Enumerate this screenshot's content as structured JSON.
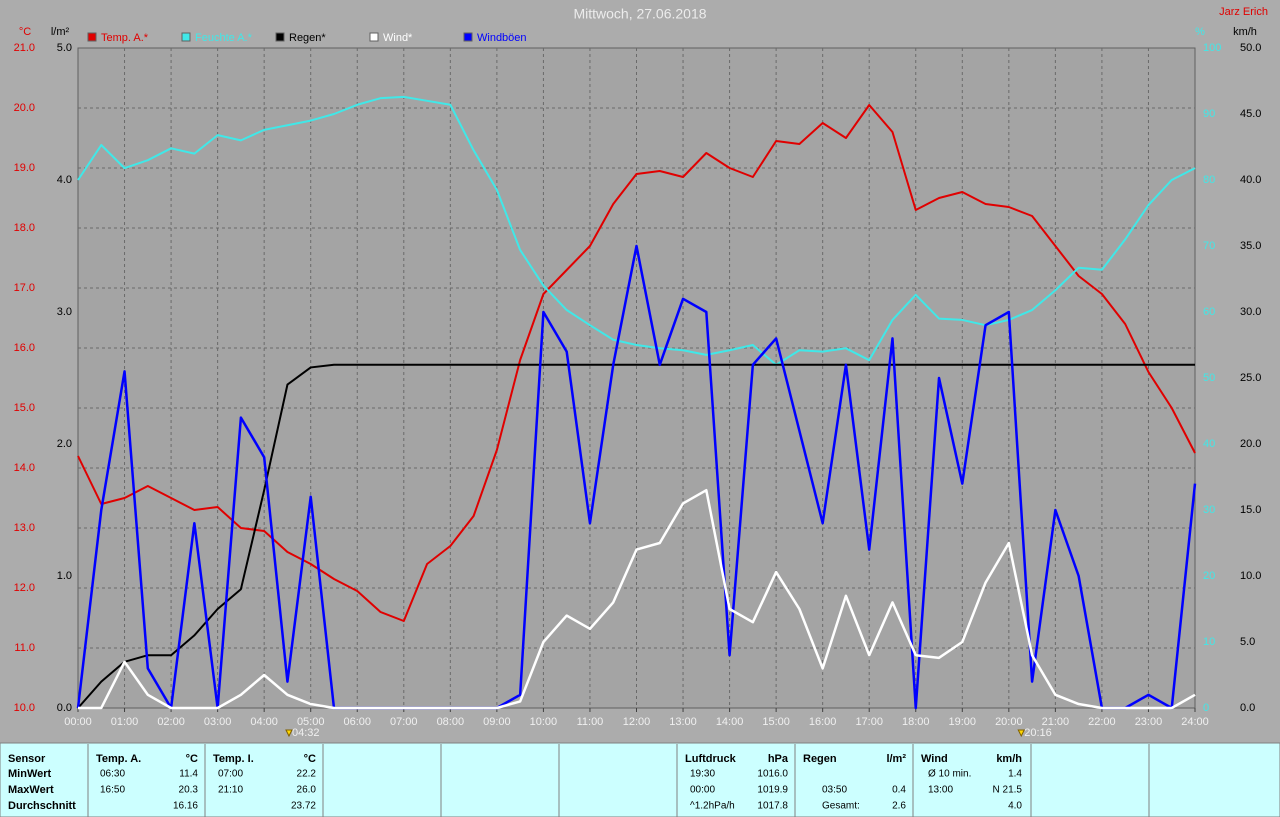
{
  "chart_data": {
    "type": "line",
    "title": "Mittwoch, 27.06.2018",
    "author": "Jarz Erich",
    "x": [
      0,
      0.5,
      1,
      1.5,
      2,
      2.5,
      3,
      3.5,
      4,
      4.5,
      5,
      5.5,
      6,
      6.5,
      7,
      7.5,
      8,
      8.5,
      9,
      9.5,
      10,
      10.5,
      11,
      11.5,
      12,
      12.5,
      13,
      13.5,
      14,
      14.5,
      15,
      15.5,
      16,
      16.5,
      17,
      17.5,
      18,
      18.5,
      19,
      19.5,
      20,
      20.5,
      21,
      21.5,
      22,
      22.5,
      23,
      23.5,
      24
    ],
    "xlim": [
      0,
      24
    ],
    "xticks": [
      {
        "value": 0,
        "label": "00:00"
      },
      {
        "value": 1,
        "label": "01:00"
      },
      {
        "value": 2,
        "label": "02:00"
      },
      {
        "value": 3,
        "label": "03:00"
      },
      {
        "value": 4,
        "label": "04:00"
      },
      {
        "value": 5,
        "label": "05:00"
      },
      {
        "value": 6,
        "label": "06:00"
      },
      {
        "value": 7,
        "label": "07:00"
      },
      {
        "value": 8,
        "label": "08:00"
      },
      {
        "value": 9,
        "label": "09:00"
      },
      {
        "value": 10,
        "label": "10:00"
      },
      {
        "value": 11,
        "label": "11:00"
      },
      {
        "value": 12,
        "label": "12:00"
      },
      {
        "value": 13,
        "label": "13:00"
      },
      {
        "value": 14,
        "label": "14:00"
      },
      {
        "value": 15,
        "label": "15:00"
      },
      {
        "value": 16,
        "label": "16:00"
      },
      {
        "value": 17,
        "label": "17:00"
      },
      {
        "value": 18,
        "label": "18:00"
      },
      {
        "value": 19,
        "label": "19:00"
      },
      {
        "value": 20,
        "label": "20:00"
      },
      {
        "value": 21,
        "label": "21:00"
      },
      {
        "value": 22,
        "label": "22:00"
      },
      {
        "value": 23,
        "label": "23:00"
      },
      {
        "value": 24,
        "label": "24:00"
      }
    ],
    "grid": true,
    "markers": [
      {
        "value": 4.533,
        "label": "04:32"
      },
      {
        "value": 20.267,
        "label": "20:16"
      }
    ],
    "axes": {
      "temp": {
        "unit": "°C",
        "color": "#e00000",
        "side": "left",
        "lim": [
          10,
          21
        ],
        "ticks": [
          {
            "value": 10,
            "label": "10.0"
          },
          {
            "value": 11,
            "label": "11.0"
          },
          {
            "value": 12,
            "label": "12.0"
          },
          {
            "value": 13,
            "label": "13.0"
          },
          {
            "value": 14,
            "label": "14.0"
          },
          {
            "value": 15,
            "label": "15.0"
          },
          {
            "value": 16,
            "label": "16.0"
          },
          {
            "value": 17,
            "label": "17.0"
          },
          {
            "value": 18,
            "label": "18.0"
          },
          {
            "value": 19,
            "label": "19.0"
          },
          {
            "value": 20,
            "label": "20.0"
          },
          {
            "value": 21,
            "label": "21.0"
          }
        ]
      },
      "rain": {
        "unit": "l/m²",
        "color": "#000000",
        "side": "left",
        "lim": [
          0,
          5
        ],
        "ticks": [
          {
            "value": 0,
            "label": "0.0"
          },
          {
            "value": 1,
            "label": "1.0"
          },
          {
            "value": 2,
            "label": "2.0"
          },
          {
            "value": 3,
            "label": "3.0"
          },
          {
            "value": 4,
            "label": "4.0"
          },
          {
            "value": 5,
            "label": "5.0"
          }
        ]
      },
      "humidity": {
        "unit": "%",
        "color": "#40e8e8",
        "side": "right",
        "lim": [
          0,
          100
        ],
        "ticks": [
          0,
          10,
          20,
          30,
          40,
          50,
          60,
          70,
          80,
          90,
          100
        ]
      },
      "wind": {
        "unit": "km/h",
        "color": "#000000",
        "side": "right",
        "lim": [
          0,
          50
        ],
        "ticks": [
          {
            "value": 0,
            "label": "0.0"
          },
          {
            "value": 5,
            "label": "5.0"
          },
          {
            "value": 10,
            "label": "10.0"
          },
          {
            "value": 15,
            "label": "15.0"
          },
          {
            "value": 20,
            "label": "20.0"
          },
          {
            "value": 25,
            "label": "25.0"
          },
          {
            "value": 30,
            "label": "30.0"
          },
          {
            "value": 35,
            "label": "35.0"
          },
          {
            "value": 40,
            "label": "40.0"
          },
          {
            "value": 45,
            "label": "45.0"
          },
          {
            "value": 50,
            "label": "50.0"
          }
        ]
      }
    },
    "series": [
      {
        "name": "Temp. A.*",
        "color": "#e00000",
        "axis": "temp",
        "values": [
          14.2,
          13.4,
          13.5,
          13.7,
          13.5,
          13.3,
          13.35,
          13.0,
          12.95,
          12.6,
          12.4,
          12.15,
          11.95,
          11.6,
          11.45,
          12.4,
          12.7,
          13.2,
          14.3,
          15.8,
          16.9,
          17.3,
          17.7,
          18.4,
          18.9,
          18.95,
          18.85,
          19.25,
          19.0,
          18.85,
          19.45,
          19.4,
          19.75,
          19.5,
          20.05,
          19.6,
          18.3,
          18.5,
          18.6,
          18.4,
          18.35,
          18.2,
          17.7,
          17.2,
          16.9,
          16.4,
          15.6,
          15.0,
          14.25
        ]
      },
      {
        "name": "Feuchte A.*",
        "color": "#40e8e8",
        "axis": "humidity",
        "values": [
          80,
          85.3,
          81.8,
          83,
          84.8,
          84,
          86.8,
          86,
          87.6,
          88.3,
          89,
          90,
          91.4,
          92.4,
          92.6,
          92,
          91.4,
          84.5,
          78.5,
          69.4,
          64,
          60.3,
          58,
          55.8,
          55,
          54.5,
          54.2,
          53.5,
          54.2,
          55,
          52,
          54.2,
          54,
          54.5,
          52.7,
          58.8,
          62.6,
          59,
          58.8,
          58,
          58.8,
          60.3,
          63.3,
          66.7,
          66.4,
          71,
          76.2,
          80,
          81.8
        ]
      },
      {
        "name": "Regen*",
        "color": "#000000",
        "axis": "rain",
        "values": [
          0,
          0.2,
          0.35,
          0.4,
          0.4,
          0.55,
          0.75,
          0.9,
          1.65,
          2.45,
          2.58,
          2.6,
          2.6,
          2.6,
          2.6,
          2.6,
          2.6,
          2.6,
          2.6,
          2.6,
          2.6,
          2.6,
          2.6,
          2.6,
          2.6,
          2.6,
          2.6,
          2.6,
          2.6,
          2.6,
          2.6,
          2.6,
          2.6,
          2.6,
          2.6,
          2.6,
          2.6,
          2.6,
          2.6,
          2.6,
          2.6,
          2.6,
          2.6,
          2.6,
          2.6,
          2.6,
          2.6,
          2.6,
          2.6
        ]
      },
      {
        "name": "Windböen",
        "color": "#0000ff",
        "axis": "wind",
        "values": [
          0,
          15,
          25.5,
          3,
          0,
          14,
          0,
          22,
          19,
          2,
          16,
          0,
          0,
          0,
          0,
          0,
          0,
          0,
          0,
          1,
          30,
          27,
          14,
          26,
          35,
          26,
          31,
          30,
          4,
          26,
          28,
          21,
          14,
          26,
          12,
          28,
          0,
          25,
          17,
          29,
          30,
          2,
          15,
          10,
          0,
          0,
          1,
          0,
          17
        ]
      },
      {
        "name": "Wind*",
        "color": "#ffffff",
        "axis": "wind",
        "values": [
          0,
          0,
          3.5,
          1,
          0,
          0,
          0,
          1,
          2.5,
          1,
          0.3,
          0,
          0,
          0,
          0,
          0,
          0,
          0,
          0,
          0.5,
          5,
          7,
          6,
          8,
          12,
          12.5,
          15.5,
          16.5,
          7.5,
          6.5,
          10.3,
          7.5,
          3,
          8.5,
          4,
          8,
          4,
          3.8,
          5,
          9.5,
          12.5,
          4,
          1,
          0.3,
          0,
          0,
          0,
          0,
          1
        ]
      }
    ],
    "legend_order": [
      0,
      1,
      2,
      4,
      3
    ]
  },
  "stats": {
    "row_labels": [
      "Sensor",
      "MinWert",
      "MaxWert",
      "Durchschnitt"
    ],
    "groups": [
      {
        "name": "Temp. A.",
        "unit": "°C",
        "rows": [
          {
            "time": "06:30",
            "value": "11.4"
          },
          {
            "time": "16:50",
            "value": "20.3"
          },
          {
            "value": "16.16"
          }
        ]
      },
      {
        "name": "Temp. I.",
        "unit": "°C",
        "rows": [
          {
            "time": "07:00",
            "value": "22.2"
          },
          {
            "time": "21:10",
            "value": "26.0"
          },
          {
            "value": "23.72"
          }
        ]
      },
      {
        "name": "Luftdruck",
        "unit": "hPa",
        "rows": [
          {
            "time": "19:30",
            "value": "1016.0"
          },
          {
            "time": "00:00",
            "value": "1019.9"
          },
          {
            "time": "^1.2hPa/h",
            "value": "1017.8"
          }
        ]
      },
      {
        "name": "Regen",
        "unit": "l/m²",
        "rows": [
          null,
          {
            "time": "03:50",
            "value": "0.4"
          },
          {
            "time": "Gesamt:",
            "value": "2.6"
          }
        ]
      },
      {
        "name": "Wind",
        "unit": "km/h",
        "rows": [
          {
            "time": "Ø 10 min.",
            "value": "1.4"
          },
          {
            "time": "13:00",
            "value": "N 21.5"
          },
          {
            "value": "4.0"
          }
        ]
      }
    ]
  }
}
